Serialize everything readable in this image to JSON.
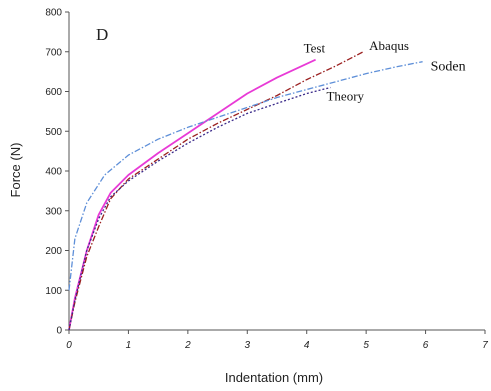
{
  "chart_data": {
    "type": "line",
    "panel_label": "D",
    "xlabel": "Indentation (mm)",
    "ylabel": "Force (N)",
    "xlim": [
      0,
      7
    ],
    "ylim": [
      0,
      800
    ],
    "x_ticks": [
      "0",
      "1",
      "2",
      "3",
      "4",
      "5",
      "6",
      "7"
    ],
    "y_ticks": [
      "0",
      "100",
      "200",
      "300",
      "400",
      "500",
      "600",
      "700",
      "800"
    ],
    "grid": false,
    "series": [
      {
        "name": "Test",
        "color": "#e83ad6",
        "dash": "solid",
        "points": [
          [
            0,
            0
          ],
          [
            0.1,
            80
          ],
          [
            0.3,
            200
          ],
          [
            0.5,
            290
          ],
          [
            0.7,
            345
          ],
          [
            1.0,
            390
          ],
          [
            1.5,
            445
          ],
          [
            2.0,
            495
          ],
          [
            2.5,
            545
          ],
          [
            3.0,
            595
          ],
          [
            3.5,
            635
          ],
          [
            4.15,
            680
          ]
        ]
      },
      {
        "name": "Abaqus",
        "color": "#9b2020",
        "dash": "dashdot",
        "points": [
          [
            0,
            0
          ],
          [
            0.1,
            70
          ],
          [
            0.3,
            185
          ],
          [
            0.5,
            260
          ],
          [
            0.7,
            330
          ],
          [
            1.0,
            380
          ],
          [
            1.5,
            430
          ],
          [
            2.0,
            480
          ],
          [
            2.5,
            520
          ],
          [
            3.0,
            555
          ],
          [
            3.5,
            590
          ],
          [
            4.0,
            630
          ],
          [
            4.5,
            665
          ],
          [
            4.95,
            700
          ]
        ]
      },
      {
        "name": "Soden",
        "color": "#5e8fd8",
        "dash": "dashdot",
        "points": [
          [
            0,
            100
          ],
          [
            0.1,
            230
          ],
          [
            0.3,
            320
          ],
          [
            0.6,
            390
          ],
          [
            1.0,
            440
          ],
          [
            1.5,
            480
          ],
          [
            2.0,
            510
          ],
          [
            2.5,
            535
          ],
          [
            3.0,
            560
          ],
          [
            3.5,
            585
          ],
          [
            4.0,
            605
          ],
          [
            4.5,
            625
          ],
          [
            5.0,
            645
          ],
          [
            5.5,
            662
          ],
          [
            5.95,
            675
          ]
        ]
      },
      {
        "name": "Theory",
        "color": "#3a2a8a",
        "dash": "dotted",
        "points": [
          [
            0,
            0
          ],
          [
            0.1,
            75
          ],
          [
            0.3,
            200
          ],
          [
            0.5,
            280
          ],
          [
            0.7,
            335
          ],
          [
            1.0,
            375
          ],
          [
            1.5,
            425
          ],
          [
            2.0,
            470
          ],
          [
            2.5,
            510
          ],
          [
            3.0,
            545
          ],
          [
            3.5,
            570
          ],
          [
            4.0,
            595
          ],
          [
            4.4,
            610
          ]
        ]
      }
    ]
  }
}
